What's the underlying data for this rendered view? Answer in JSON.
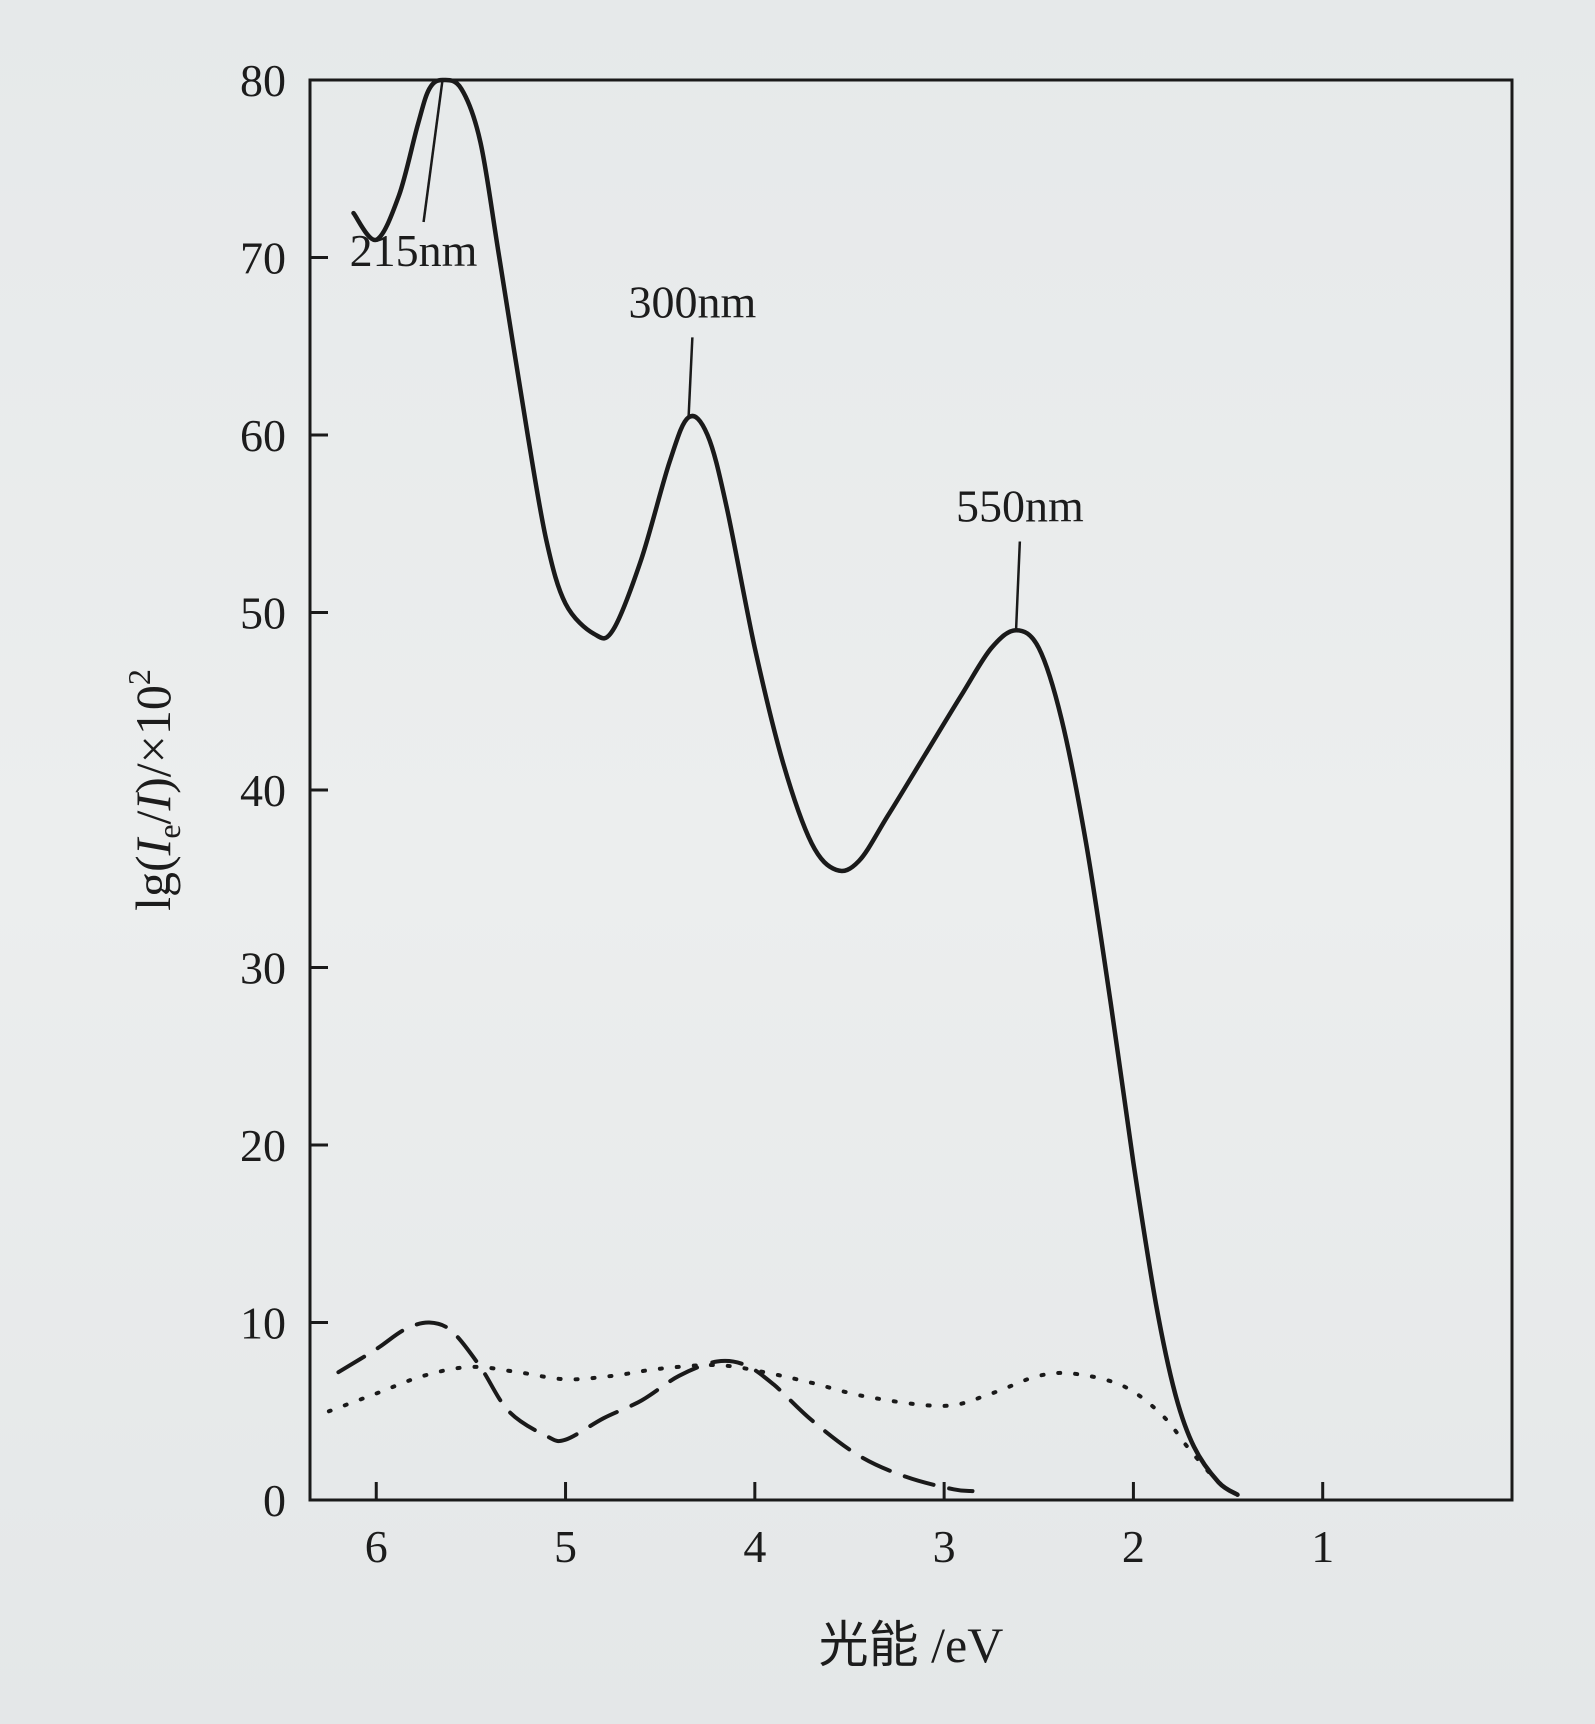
{
  "chart_data": {
    "type": "line",
    "xlabel": "光能 /eV",
    "ylabel": "lg(Ie/I)/×10²",
    "ylabel_parts": {
      "prefix": "lg(",
      "I1": "I",
      "sub": "e",
      "slash": "/",
      "I2": "I",
      "suffix": ")/×10",
      "sup": "2"
    },
    "xlim": [
      6.35,
      0.0
    ],
    "ylim": [
      0,
      80
    ],
    "x_reversed": true,
    "xticks": [
      6,
      5,
      4,
      3,
      2,
      1
    ],
    "yticks": [
      0,
      10,
      20,
      30,
      40,
      50,
      60,
      70,
      80
    ],
    "grid": false,
    "series": [
      {
        "style": "solid",
        "color": "#1a1a1a",
        "points": [
          [
            6.12,
            72.5
          ],
          [
            6.0,
            71.0
          ],
          [
            5.88,
            73.5
          ],
          [
            5.78,
            77.5
          ],
          [
            5.72,
            79.5
          ],
          [
            5.65,
            80.0
          ],
          [
            5.55,
            79.5
          ],
          [
            5.45,
            76.5
          ],
          [
            5.35,
            70.0
          ],
          [
            5.2,
            60.0
          ],
          [
            5.1,
            54.0
          ],
          [
            5.0,
            50.5
          ],
          [
            4.85,
            48.8
          ],
          [
            4.75,
            49.0
          ],
          [
            4.6,
            53.0
          ],
          [
            4.45,
            58.5
          ],
          [
            4.35,
            61.0
          ],
          [
            4.25,
            60.0
          ],
          [
            4.15,
            56.0
          ],
          [
            4.0,
            48.0
          ],
          [
            3.85,
            41.5
          ],
          [
            3.7,
            37.0
          ],
          [
            3.57,
            35.5
          ],
          [
            3.45,
            36.0
          ],
          [
            3.3,
            38.5
          ],
          [
            3.1,
            42.0
          ],
          [
            2.9,
            45.5
          ],
          [
            2.75,
            48.0
          ],
          [
            2.62,
            49.0
          ],
          [
            2.5,
            48.0
          ],
          [
            2.38,
            44.0
          ],
          [
            2.25,
            37.0
          ],
          [
            2.12,
            28.0
          ],
          [
            2.0,
            19.0
          ],
          [
            1.88,
            11.0
          ],
          [
            1.78,
            6.0
          ],
          [
            1.68,
            3.0
          ],
          [
            1.55,
            1.0
          ],
          [
            1.45,
            0.3
          ]
        ]
      },
      {
        "style": "dashed",
        "color": "#1a1a1a",
        "points": [
          [
            6.2,
            7.2
          ],
          [
            6.0,
            8.5
          ],
          [
            5.85,
            9.6
          ],
          [
            5.72,
            10.0
          ],
          [
            5.6,
            9.5
          ],
          [
            5.45,
            7.5
          ],
          [
            5.3,
            5.0
          ],
          [
            5.1,
            3.6
          ],
          [
            5.0,
            3.4
          ],
          [
            4.8,
            4.6
          ],
          [
            4.6,
            5.6
          ],
          [
            4.4,
            7.0
          ],
          [
            4.2,
            7.8
          ],
          [
            4.05,
            7.6
          ],
          [
            3.9,
            6.5
          ],
          [
            3.7,
            4.5
          ],
          [
            3.45,
            2.5
          ],
          [
            3.2,
            1.3
          ],
          [
            2.95,
            0.6
          ],
          [
            2.85,
            0.5
          ]
        ]
      },
      {
        "style": "dotted",
        "color": "#1a1a1a",
        "points": [
          [
            6.25,
            5.0
          ],
          [
            6.0,
            6.0
          ],
          [
            5.75,
            7.0
          ],
          [
            5.5,
            7.5
          ],
          [
            5.25,
            7.2
          ],
          [
            5.0,
            6.8
          ],
          [
            4.75,
            7.0
          ],
          [
            4.5,
            7.4
          ],
          [
            4.2,
            7.6
          ],
          [
            3.95,
            7.2
          ],
          [
            3.7,
            6.6
          ],
          [
            3.4,
            5.8
          ],
          [
            3.0,
            5.3
          ],
          [
            2.75,
            6.0
          ],
          [
            2.5,
            7.0
          ],
          [
            2.3,
            7.1
          ],
          [
            2.05,
            6.4
          ],
          [
            1.85,
            4.8
          ],
          [
            1.7,
            2.8
          ],
          [
            1.55,
            1.0
          ],
          [
            1.45,
            0.3
          ]
        ]
      }
    ],
    "annotations": [
      {
        "text": "215nm",
        "at": [
          5.65,
          80.0
        ],
        "leader_to": [
          5.75,
          72.0
        ]
      },
      {
        "text": "300nm",
        "at": [
          4.35,
          61.0
        ],
        "leader_to": [
          4.33,
          65.5
        ]
      },
      {
        "text": "550nm",
        "at": [
          2.62,
          49.0
        ],
        "leader_to": [
          2.6,
          54.0
        ]
      }
    ]
  }
}
